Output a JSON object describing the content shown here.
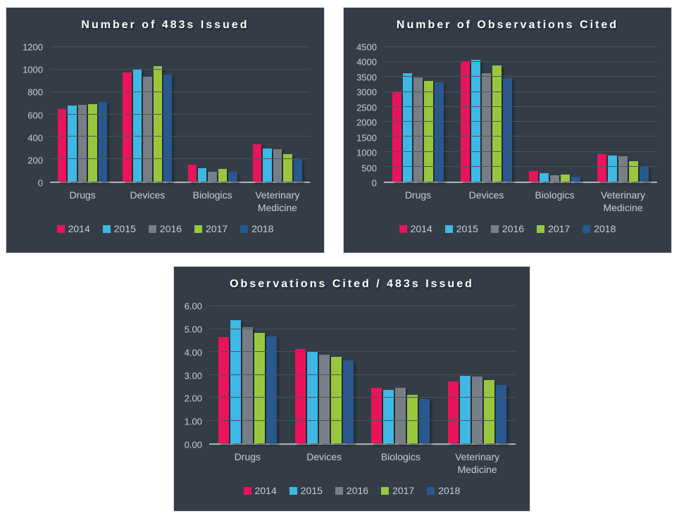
{
  "theme": {
    "page_bg": "#FFFFFF",
    "panel_bg": "#343D47",
    "panel_border": "#D8DBDD",
    "title_color": "#FFFFFF",
    "axis_text": "#C8CDD2",
    "grid_color": "#4A525C",
    "baseline_color": "#AEB3B8",
    "series_colors": [
      "#E9145B",
      "#3FB8E5",
      "#777F85",
      "#98C73E",
      "#27598E"
    ]
  },
  "years": [
    "2014",
    "2015",
    "2016",
    "2017",
    "2018"
  ],
  "chart_data": [
    {
      "type": "bar",
      "title": "Number of 483s Issued",
      "categories": [
        "Drugs",
        "Devices",
        "Biologics",
        "Veterinary Medicine"
      ],
      "series": [
        {
          "name": "2014",
          "values": [
            645,
            971,
            148,
            335
          ]
        },
        {
          "name": "2015",
          "values": [
            676,
            1008,
            122,
            296
          ]
        },
        {
          "name": "2016",
          "values": [
            688,
            934,
            86,
            286
          ]
        },
        {
          "name": "2017",
          "values": [
            694,
            1030,
            116,
            246
          ]
        },
        {
          "name": "2018",
          "values": [
            710,
            958,
            86,
            199
          ]
        }
      ],
      "xlabel": "",
      "ylabel": "",
      "ylim": [
        0,
        1200
      ],
      "ytick_step": 200,
      "ytick_decimals": 0,
      "grid": true,
      "legend_position": "bottom"
    },
    {
      "type": "bar",
      "title": "Number of Observations Cited",
      "categories": [
        "Drugs",
        "Devices",
        "Biologics",
        "Veterinary Medicine"
      ],
      "series": [
        {
          "name": "2014",
          "values": [
            3002,
            4004,
            359,
            908
          ]
        },
        {
          "name": "2015",
          "values": [
            3632,
            4073,
            285,
            874
          ]
        },
        {
          "name": "2016",
          "values": [
            3496,
            3636,
            210,
            839
          ]
        },
        {
          "name": "2017",
          "values": [
            3358,
            3884,
            247,
            680
          ]
        },
        {
          "name": "2018",
          "values": [
            3333,
            3470,
            167,
            508
          ]
        }
      ],
      "xlabel": "",
      "ylabel": "",
      "ylim": [
        0,
        4500
      ],
      "ytick_step": 500,
      "ytick_decimals": 0,
      "grid": true,
      "legend_position": "bottom"
    },
    {
      "type": "bar",
      "title": "Observations Cited / 483s Issued",
      "categories": [
        "Drugs",
        "Devices",
        "Biologics",
        "Veterinary Medicine"
      ],
      "series": [
        {
          "name": "2014",
          "values": [
            4.65,
            4.12,
            2.43,
            2.71
          ]
        },
        {
          "name": "2015",
          "values": [
            5.37,
            4.04,
            2.34,
            2.95
          ]
        },
        {
          "name": "2016",
          "values": [
            5.08,
            3.89,
            2.44,
            2.93
          ]
        },
        {
          "name": "2017",
          "values": [
            4.84,
            3.77,
            2.13,
            2.76
          ]
        },
        {
          "name": "2018",
          "values": [
            4.69,
            3.62,
            1.94,
            2.55
          ]
        }
      ],
      "xlabel": "",
      "ylabel": "",
      "ylim": [
        0,
        6
      ],
      "ytick_step": 1,
      "ytick_decimals": 2,
      "grid": true,
      "legend_position": "bottom"
    }
  ]
}
